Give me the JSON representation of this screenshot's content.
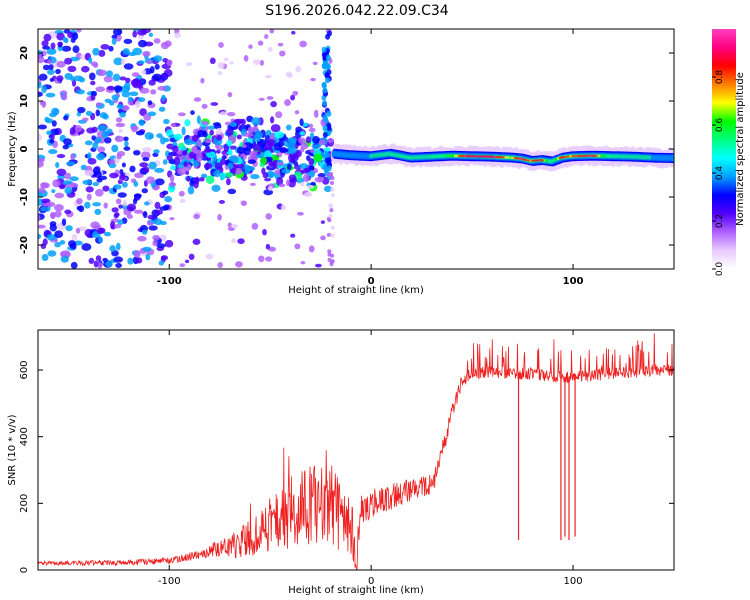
{
  "title": "S196.2026.042.22.09.C34",
  "chart_data": [
    {
      "type": "heatmap",
      "xlabel": "Height of straight line (km)",
      "ylabel": "Frequency (Hz)",
      "xlim": [
        -165,
        150
      ],
      "ylim": [
        -25,
        25
      ],
      "x_ticks": [
        -100,
        0,
        100
      ],
      "x_tick_labels": [
        "-100",
        "0",
        "100"
      ],
      "y_ticks": [
        -20,
        -10,
        0,
        10,
        20
      ],
      "y_tick_labels": [
        "-20",
        "-10",
        "0",
        "10",
        "20"
      ],
      "colorbar": {
        "label": "Normalized spectral amplitude",
        "range": [
          0,
          1
        ],
        "ticks": [
          0,
          0.2,
          0.4,
          0.6,
          0.8
        ],
        "tick_labels": [
          "0.0",
          "0.2",
          "0.4",
          "0.6",
          "0.8"
        ],
        "colors": [
          "#ffffff",
          "#e8ccff",
          "#b060ff",
          "#5000ff",
          "#0000ff",
          "#00a0ff",
          "#00ffff",
          "#00ff80",
          "#00ff00",
          "#ffff00",
          "#ff8000",
          "#ff0000",
          "#ff0080",
          "#ff40c0"
        ]
      },
      "scatter_region": {
        "x": [
          -165,
          -100
        ],
        "freq": [
          -25,
          25
        ],
        "level": 0.3
      },
      "transition_region": {
        "x": [
          -100,
          -20
        ],
        "freq": [
          -10,
          8
        ],
        "level": 0.35
      },
      "vertical_streak": {
        "x": -22,
        "freq": [
          -5,
          25
        ]
      },
      "ridge": {
        "x": [
          -18,
          -10,
          0,
          10,
          20,
          30,
          40,
          50,
          60,
          70,
          75,
          80,
          85,
          90,
          95,
          100,
          110,
          120,
          130,
          140,
          150
        ],
        "freq": [
          -1,
          -1.3,
          -1.5,
          -1,
          -1.8,
          -1.6,
          -1.4,
          -1.5,
          -1.6,
          -1.8,
          -2,
          -2.5,
          -2.3,
          -2.6,
          -1.8,
          -1.5,
          -1.4,
          -1.5,
          -1.6,
          -1.8,
          -1.9
        ],
        "amplitude": [
          0.35,
          0.45,
          0.5,
          0.6,
          0.55,
          0.6,
          0.7,
          0.95,
          0.95,
          0.75,
          0.9,
          0.8,
          0.9,
          0.6,
          0.85,
          0.8,
          0.9,
          0.6,
          0.55,
          0.5,
          0.45
        ]
      }
    },
    {
      "type": "line",
      "xlabel": "Height of straight line (km)",
      "ylabel": "SNR (10 * v/v)",
      "xlim": [
        -165,
        150
      ],
      "ylim": [
        0,
        720
      ],
      "x_ticks": [
        -100,
        0,
        100
      ],
      "x_tick_labels": [
        "-100",
        "0",
        "100"
      ],
      "y_ticks": [
        0,
        200,
        400,
        600
      ],
      "y_tick_labels": [
        "0",
        "200",
        "400",
        "600"
      ],
      "color": "#ee2020",
      "baseline": {
        "x": [
          -165,
          -120,
          -100,
          -90,
          -80,
          -70,
          -60,
          -50,
          -40,
          -30,
          -20,
          -10,
          -7,
          -5,
          0,
          10,
          20,
          25,
          30,
          32,
          35,
          40,
          45,
          50,
          60,
          70,
          80,
          90,
          100,
          110,
          120,
          130,
          140,
          150
        ],
        "y": [
          20,
          22,
          28,
          40,
          55,
          60,
          80,
          110,
          140,
          160,
          150,
          100,
          25,
          180,
          200,
          220,
          240,
          250,
          260,
          280,
          350,
          470,
          570,
          590,
          595,
          590,
          590,
          580,
          580,
          585,
          590,
          590,
          600,
          600
        ]
      },
      "noise": {
        "x": [
          -165,
          -100,
          -80,
          -60,
          -40,
          -20,
          -10,
          -5,
          20,
          35,
          45,
          150
        ],
        "amplitude": [
          12,
          18,
          35,
          110,
          220,
          260,
          180,
          90,
          70,
          60,
          40,
          40
        ]
      },
      "dropouts": [
        {
          "x": 73,
          "y": 90
        },
        {
          "x": 94,
          "y": 90
        },
        {
          "x": 96,
          "y": 100
        },
        {
          "x": 98,
          "y": 90
        },
        {
          "x": 101,
          "y": 100
        }
      ]
    }
  ]
}
